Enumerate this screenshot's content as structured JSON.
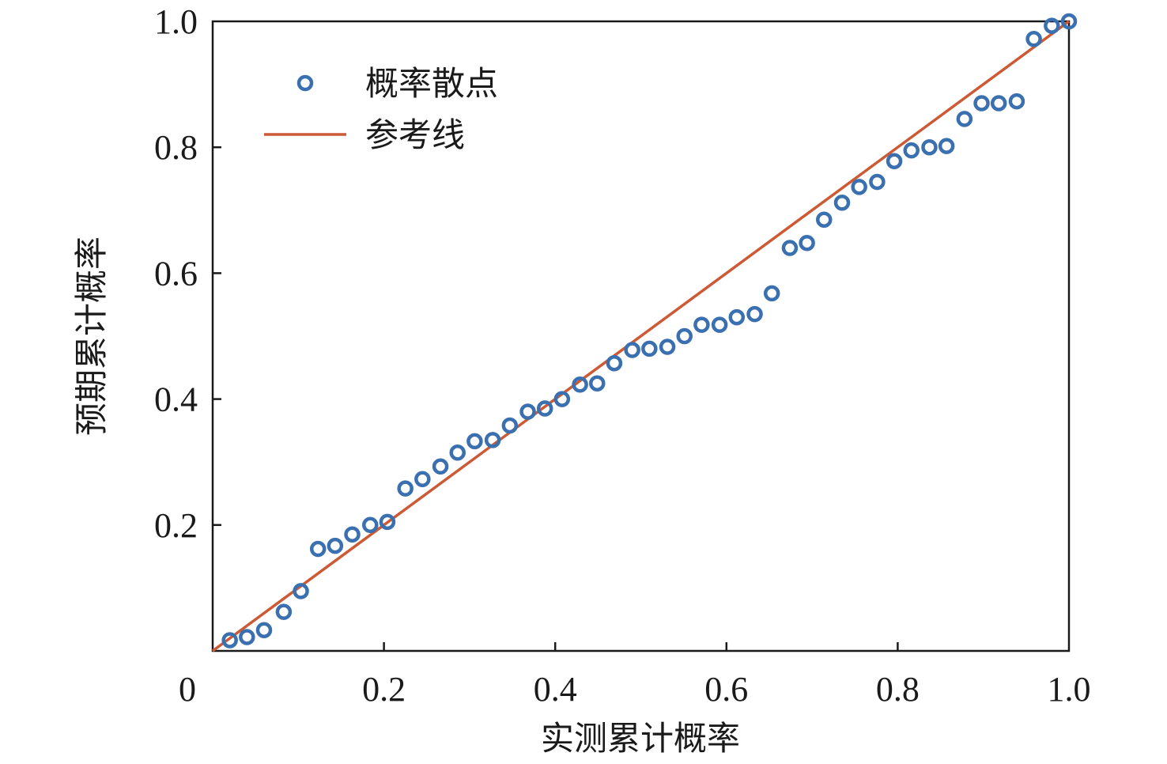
{
  "chart_data": {
    "type": "scatter",
    "xlabel": "实测累计概率",
    "ylabel": "预期累计概率",
    "xlim": [
      0,
      1.0
    ],
    "ylim": [
      0,
      1.0
    ],
    "xticks": [
      {
        "value": 0,
        "label": "0"
      },
      {
        "value": 0.2,
        "label": "0.2"
      },
      {
        "value": 0.4,
        "label": "0.4"
      },
      {
        "value": 0.6,
        "label": "0.6"
      },
      {
        "value": 0.8,
        "label": "0.8"
      },
      {
        "value": 1.0,
        "label": "1.0"
      }
    ],
    "yticks": [
      {
        "value": 0.2,
        "label": "0.2"
      },
      {
        "value": 0.4,
        "label": "0.4"
      },
      {
        "value": 0.6,
        "label": "0.6"
      },
      {
        "value": 0.8,
        "label": "0.8"
      },
      {
        "value": 1.0,
        "label": "1.0"
      }
    ],
    "grid": false,
    "legend_position": "top-left",
    "series": [
      {
        "name": "概率散点",
        "kind": "scatter",
        "color": "#3a6fb0",
        "points": [
          [
            0.02,
            0.017
          ],
          [
            0.04,
            0.022
          ],
          [
            0.06,
            0.033
          ],
          [
            0.083,
            0.062
          ],
          [
            0.103,
            0.095
          ],
          [
            0.123,
            0.162
          ],
          [
            0.143,
            0.167
          ],
          [
            0.163,
            0.185
          ],
          [
            0.184,
            0.2
          ],
          [
            0.204,
            0.205
          ],
          [
            0.225,
            0.258
          ],
          [
            0.245,
            0.273
          ],
          [
            0.266,
            0.293
          ],
          [
            0.286,
            0.315
          ],
          [
            0.306,
            0.333
          ],
          [
            0.327,
            0.335
          ],
          [
            0.347,
            0.358
          ],
          [
            0.368,
            0.38
          ],
          [
            0.388,
            0.385
          ],
          [
            0.408,
            0.4
          ],
          [
            0.429,
            0.423
          ],
          [
            0.449,
            0.425
          ],
          [
            0.469,
            0.457
          ],
          [
            0.49,
            0.478
          ],
          [
            0.51,
            0.48
          ],
          [
            0.531,
            0.483
          ],
          [
            0.551,
            0.5
          ],
          [
            0.571,
            0.518
          ],
          [
            0.592,
            0.518
          ],
          [
            0.612,
            0.53
          ],
          [
            0.633,
            0.535
          ],
          [
            0.653,
            0.568
          ],
          [
            0.674,
            0.64
          ],
          [
            0.694,
            0.648
          ],
          [
            0.714,
            0.685
          ],
          [
            0.735,
            0.712
          ],
          [
            0.755,
            0.737
          ],
          [
            0.776,
            0.745
          ],
          [
            0.796,
            0.778
          ],
          [
            0.816,
            0.795
          ],
          [
            0.837,
            0.8
          ],
          [
            0.857,
            0.802
          ],
          [
            0.878,
            0.845
          ],
          [
            0.898,
            0.87
          ],
          [
            0.918,
            0.87
          ],
          [
            0.939,
            0.873
          ],
          [
            0.959,
            0.972
          ],
          [
            0.98,
            0.993
          ],
          [
            1.0,
            1.0
          ]
        ]
      },
      {
        "name": "参考线",
        "kind": "line",
        "color": "#cc5a35",
        "x": [
          0,
          1.0
        ],
        "y": [
          0,
          1.0
        ]
      }
    ]
  }
}
